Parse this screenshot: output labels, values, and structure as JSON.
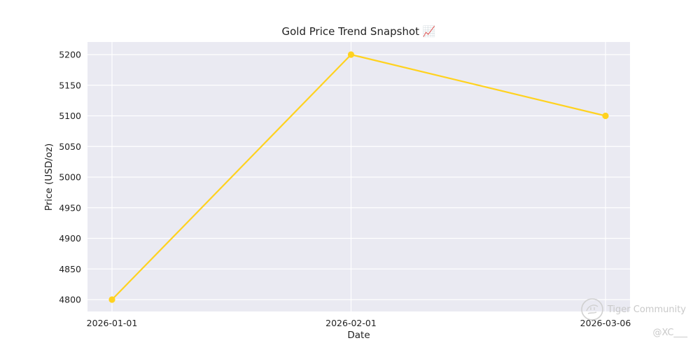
{
  "chart_data": {
    "type": "line",
    "title": "Gold Price Trend Snapshot 📈",
    "xlabel": "Date",
    "ylabel": "Price (USD/oz)",
    "x": [
      "2026-01-01",
      "2026-02-01",
      "2026-03-06"
    ],
    "series": [
      {
        "values": [
          4800,
          5200,
          5100
        ],
        "color": "#ffd21f"
      }
    ],
    "yticks": [
      4800,
      4850,
      4900,
      4950,
      5000,
      5050,
      5100,
      5150,
      5200
    ],
    "ylim": [
      4780,
      5220
    ],
    "grid": true,
    "background_color": "#eaeaf2",
    "grid_color": "#ffffff"
  },
  "watermark": {
    "brand": "Tiger Community",
    "handle": "@XC___",
    "icon": "tiger-logo-icon"
  }
}
